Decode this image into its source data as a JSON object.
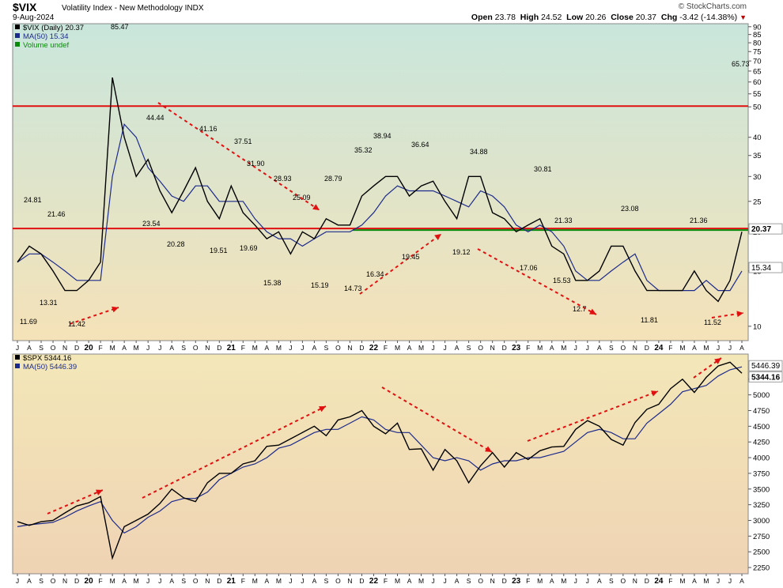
{
  "header": {
    "symbol": "$VIX",
    "description": "Volatility Index - New Methodology  INDX",
    "date": "9-Aug-2024",
    "brand": "© StockCharts.com",
    "open_label": "Open",
    "open": "23.78",
    "high_label": "High",
    "high": "24.52",
    "low_label": "Low",
    "low": "20.26",
    "close_label": "Close",
    "close": "20.37",
    "chg_label": "Chg",
    "chg": "-3.42 (-14.38%)"
  },
  "colors": {
    "price": "#000000",
    "ma": "#1c2a8c",
    "red_line": "#e01010",
    "green_line": "#0a8a0a",
    "arrow": "#e01010",
    "top_panel_top": "#c9e6dc",
    "top_panel_bottom": "#f5e2b8",
    "bottom_panel_top": "#f3e7b8",
    "bottom_panel_bottom": "#efd3b4"
  },
  "chart_data": [
    {
      "type": "line",
      "name": "vix-panel",
      "legend": [
        "$VIX (Daily) 20.37",
        "MA(50) 15.34",
        "Volume undef"
      ],
      "x": [
        "2019-07",
        "2019-08",
        "2019-09",
        "2019-10",
        "2019-11",
        "2019-12",
        "2020-01",
        "2020-02",
        "2020-03",
        "2020-04",
        "2020-05",
        "2020-06",
        "2020-07",
        "2020-08",
        "2020-09",
        "2020-10",
        "2020-11",
        "2020-12",
        "2021-01",
        "2021-02",
        "2021-03",
        "2021-04",
        "2021-05",
        "2021-06",
        "2021-07",
        "2021-08",
        "2021-09",
        "2021-10",
        "2021-11",
        "2021-12",
        "2022-01",
        "2022-02",
        "2022-03",
        "2022-04",
        "2022-05",
        "2022-06",
        "2022-07",
        "2022-08",
        "2022-09",
        "2022-10",
        "2022-11",
        "2022-12",
        "2023-01",
        "2023-02",
        "2023-03",
        "2023-04",
        "2023-05",
        "2023-06",
        "2023-07",
        "2023-08",
        "2023-09",
        "2023-10",
        "2023-11",
        "2023-12",
        "2024-01",
        "2024-02",
        "2024-03",
        "2024-04",
        "2024-05",
        "2024-06",
        "2024-07",
        "2024-08"
      ],
      "x_tick_labels": [
        "J",
        "A",
        "S",
        "O",
        "N",
        "D",
        "20",
        "F",
        "M",
        "A",
        "M",
        "J",
        "J",
        "A",
        "S",
        "O",
        "N",
        "D",
        "21",
        "F",
        "M",
        "A",
        "M",
        "J",
        "J",
        "A",
        "S",
        "O",
        "N",
        "D",
        "22",
        "F",
        "M",
        "A",
        "M",
        "J",
        "J",
        "A",
        "S",
        "O",
        "N",
        "D",
        "23",
        "F",
        "M",
        "A",
        "M",
        "J",
        "J",
        "A",
        "S",
        "O",
        "N",
        "D",
        "24",
        "F",
        "M",
        "A",
        "M",
        "J",
        "J",
        "A"
      ],
      "y_scale": "log",
      "y_ticks": [
        10,
        15,
        20,
        25,
        30,
        35,
        40,
        50,
        55,
        60,
        65,
        70,
        75,
        80,
        85,
        90
      ],
      "ylim": [
        9,
        92
      ],
      "series": [
        {
          "name": "$VIX (Daily)",
          "values": [
            16,
            18,
            17,
            15,
            13,
            13,
            14,
            16,
            62,
            40,
            30,
            34,
            27,
            23,
            27,
            32,
            25,
            22,
            28,
            23,
            21,
            19,
            20,
            17,
            20,
            19,
            22,
            21,
            21,
            26,
            28,
            30,
            30,
            26,
            28,
            29,
            25,
            22,
            30,
            30,
            23,
            22,
            20,
            21,
            22,
            18,
            17,
            14,
            14,
            15,
            18,
            18,
            15,
            13,
            13,
            13,
            13,
            15,
            13,
            12,
            14,
            20
          ]
        },
        {
          "name": "MA(50)",
          "values": [
            16,
            17,
            17,
            16,
            15,
            14,
            14,
            14,
            30,
            44,
            40,
            32,
            29,
            26,
            25,
            28,
            28,
            25,
            25,
            25,
            22,
            20,
            19,
            19,
            18,
            19,
            20,
            20,
            20,
            21,
            23,
            26,
            28,
            27,
            27,
            27,
            26,
            25,
            24,
            27,
            26,
            24,
            21,
            20,
            21,
            20,
            18,
            15,
            14,
            14,
            15,
            16,
            17,
            14,
            13,
            13,
            13,
            13,
            14,
            13,
            13,
            15
          ]
        }
      ],
      "annotations": [
        "11.69",
        "24.81",
        "13.31",
        "21.46",
        "11.42",
        "85.47",
        "44.44",
        "23.54",
        "20.28",
        "41.16",
        "19.51",
        "37.51",
        "19.69",
        "31.90",
        "15.38",
        "28.93",
        "25.09",
        "15.19",
        "28.79",
        "14.73",
        "35.32",
        "16.34",
        "38.94",
        "19.45",
        "36.64",
        "19.12",
        "34.88",
        "17.06",
        "30.81",
        "15.53",
        "21.33",
        "12.7",
        "23.08",
        "11.81",
        "21.36",
        "11.52",
        "65.73"
      ],
      "last_value_labels": [
        "20.37",
        "15.34"
      ],
      "horizontal_lines": [
        {
          "value": 50,
          "color": "red"
        },
        {
          "value": 20.37,
          "color": "red"
        },
        {
          "value": 20.37,
          "color": "green"
        }
      ]
    },
    {
      "type": "line",
      "name": "spx-panel",
      "legend": [
        "$SPX 5344.16",
        "MA(50) 5446.39"
      ],
      "x_tick_labels": [
        "J",
        "A",
        "S",
        "O",
        "N",
        "D",
        "20",
        "F",
        "M",
        "A",
        "M",
        "J",
        "J",
        "A",
        "S",
        "O",
        "N",
        "D",
        "21",
        "F",
        "M",
        "A",
        "M",
        "J",
        "J",
        "A",
        "S",
        "O",
        "N",
        "D",
        "22",
        "F",
        "M",
        "A",
        "M",
        "J",
        "J",
        "A",
        "S",
        "O",
        "N",
        "D",
        "23",
        "F",
        "M",
        "A",
        "M",
        "J",
        "J",
        "A",
        "S",
        "O",
        "N",
        "D",
        "24",
        "F",
        "M",
        "A",
        "M",
        "J",
        "J",
        "A"
      ],
      "y_ticks": [
        2250,
        2500,
        2750,
        3000,
        3250,
        3500,
        3750,
        4000,
        4250,
        4500,
        4750,
        5000,
        5250
      ],
      "ylim": [
        2150,
        5650
      ],
      "series": [
        {
          "name": "$SPX",
          "values": [
            2980,
            2920,
            2980,
            3000,
            3120,
            3230,
            3280,
            3380,
            2400,
            2900,
            3000,
            3100,
            3270,
            3500,
            3360,
            3300,
            3600,
            3750,
            3750,
            3900,
            3950,
            4180,
            4200,
            4300,
            4400,
            4500,
            4350,
            4600,
            4650,
            4750,
            4500,
            4380,
            4550,
            4130,
            4140,
            3800,
            4130,
            3950,
            3600,
            3870,
            4080,
            3850,
            4080,
            3970,
            4110,
            4170,
            4180,
            4450,
            4590,
            4500,
            4290,
            4200,
            4560,
            4770,
            4850,
            5100,
            5250,
            5040,
            5280,
            5460,
            5520,
            5344
          ]
        },
        {
          "name": "MA(50)",
          "values": [
            2900,
            2930,
            2950,
            2970,
            3050,
            3150,
            3230,
            3300,
            3000,
            2800,
            2900,
            3050,
            3150,
            3300,
            3350,
            3350,
            3450,
            3650,
            3750,
            3850,
            3900,
            4000,
            4150,
            4200,
            4300,
            4400,
            4450,
            4450,
            4550,
            4650,
            4600,
            4450,
            4400,
            4400,
            4200,
            4000,
            3950,
            4000,
            3950,
            3800,
            3900,
            3950,
            3950,
            4000,
            4000,
            4050,
            4100,
            4250,
            4400,
            4450,
            4400,
            4300,
            4300,
            4550,
            4700,
            4850,
            5050,
            5100,
            5150,
            5300,
            5400,
            5446
          ]
        }
      ],
      "last_value_labels": [
        "5446.39",
        "5344.16"
      ]
    }
  ]
}
